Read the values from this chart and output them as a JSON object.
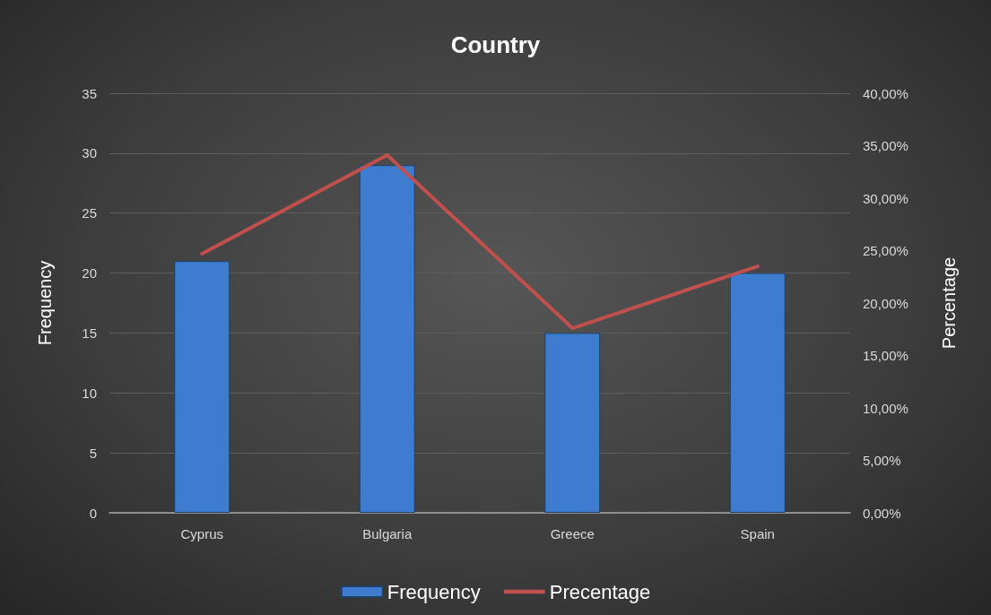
{
  "chart_data": {
    "type": "bar",
    "title": "Country",
    "ylabel": "Frequency",
    "y2label": "Percentage",
    "categories": [
      "Cyprus",
      "Bulgaria",
      "Greece",
      "Spain"
    ],
    "series": [
      {
        "name": "Frequency",
        "color": "#3d7cce",
        "values": [
          21,
          29,
          15,
          20
        ]
      },
      {
        "name": "Precentage",
        "type": "line",
        "axis": "y2",
        "color": "#c0504d",
        "values": [
          24.7,
          34.1,
          17.6,
          23.5
        ]
      }
    ],
    "ylim": [
      0,
      35
    ],
    "yticks": [
      0,
      5,
      10,
      15,
      20,
      25,
      30,
      35
    ],
    "y2lim": [
      0,
      40
    ],
    "y2ticks": [
      {
        "value": 0,
        "label": "0,00%"
      },
      {
        "value": 5,
        "label": "5,00%"
      },
      {
        "value": 10,
        "label": "10,00%"
      },
      {
        "value": 15,
        "label": "15,00%"
      },
      {
        "value": 20,
        "label": "20,00%"
      },
      {
        "value": 25,
        "label": "25,00%"
      },
      {
        "value": 30,
        "label": "30,00%"
      },
      {
        "value": 35,
        "label": "35,00%"
      },
      {
        "value": 40,
        "label": "40,00%"
      }
    ],
    "grid": "y",
    "legend": "bottom",
    "marker": "none"
  }
}
